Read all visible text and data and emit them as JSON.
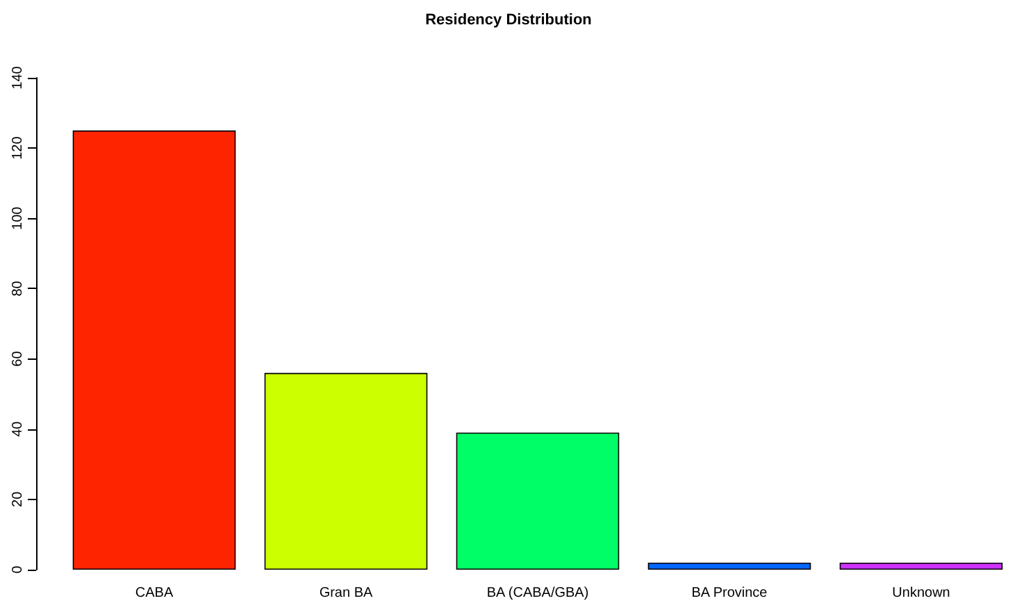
{
  "chart_data": {
    "type": "bar",
    "title": "Residency Distribution",
    "categories": [
      "CABA",
      "Gran BA",
      "BA (CABA/GBA)",
      "BA Province",
      "Unknown"
    ],
    "values": [
      125,
      56,
      39,
      2,
      2
    ],
    "colors": [
      "#ff2400",
      "#ccff00",
      "#00ff66",
      "#0066ff",
      "#cc33ff"
    ],
    "ylim": [
      0,
      140
    ],
    "yticks": [
      0,
      20,
      40,
      60,
      80,
      100,
      120,
      140
    ],
    "grid": false
  }
}
